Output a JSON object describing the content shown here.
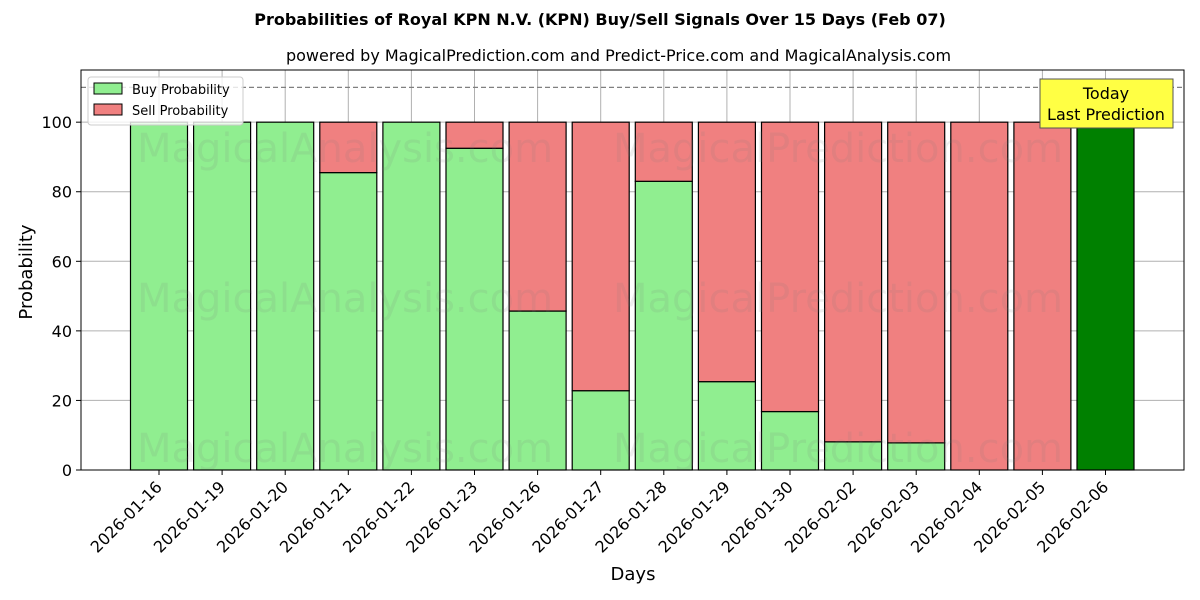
{
  "header": {
    "title": "Probabilities of Royal KPN N.V. (KPN) Buy/Sell Signals Over 15 Days (Feb 07)",
    "subtitle": "powered by MagicalPrediction.com and Predict-Price.com and MagicalAnalysis.com"
  },
  "legend": {
    "buy_label": "Buy Probability",
    "sell_label": "Sell Probability"
  },
  "annotation": {
    "line1": "Today",
    "line2": "Last Prediction"
  },
  "watermarks": [
    "MagicalAnalysis.com",
    "MagicalPrediction.com"
  ],
  "colors": {
    "buy": "#90ee90",
    "sell": "#f08080",
    "today": "#008000",
    "annotation_bg": "#ffff44",
    "threshold_line": "#808080"
  },
  "chart_data": {
    "type": "bar",
    "stacked": true,
    "title": "Probabilities of Royal KPN N.V. (KPN) Buy/Sell Signals Over 15 Days (Feb 07)",
    "subtitle": "powered by MagicalPrediction.com and Predict-Price.com and MagicalAnalysis.com",
    "xlabel": "Days",
    "ylabel": "Probability",
    "ylim": [
      0,
      115
    ],
    "yticks": [
      0,
      20,
      40,
      60,
      80,
      100
    ],
    "grid": true,
    "legend_position": "upper left",
    "threshold_line": 110,
    "categories": [
      "2026-01-16",
      "2026-01-19",
      "2026-01-20",
      "2026-01-21",
      "2026-01-22",
      "2026-01-23",
      "2026-01-26",
      "2026-01-27",
      "2026-01-28",
      "2026-01-29",
      "2026-01-30",
      "2026-02-02",
      "2026-02-03",
      "2026-02-04",
      "2026-02-05",
      "2026-02-06"
    ],
    "series": [
      {
        "name": "Buy Probability",
        "values": [
          100,
          100,
          100,
          85.5,
          100,
          92.5,
          45.7,
          22.8,
          83.0,
          25.4,
          16.8,
          8.1,
          7.8,
          0,
          0,
          100
        ]
      },
      {
        "name": "Sell Probability",
        "values": [
          0,
          0,
          0,
          14.5,
          0,
          7.5,
          54.3,
          77.2,
          17.0,
          74.6,
          83.2,
          91.9,
          92.2,
          100,
          100,
          0
        ]
      }
    ],
    "highlight": {
      "category": "2026-02-06",
      "label": "Today\nLast Prediction",
      "color": "#008000"
    }
  }
}
